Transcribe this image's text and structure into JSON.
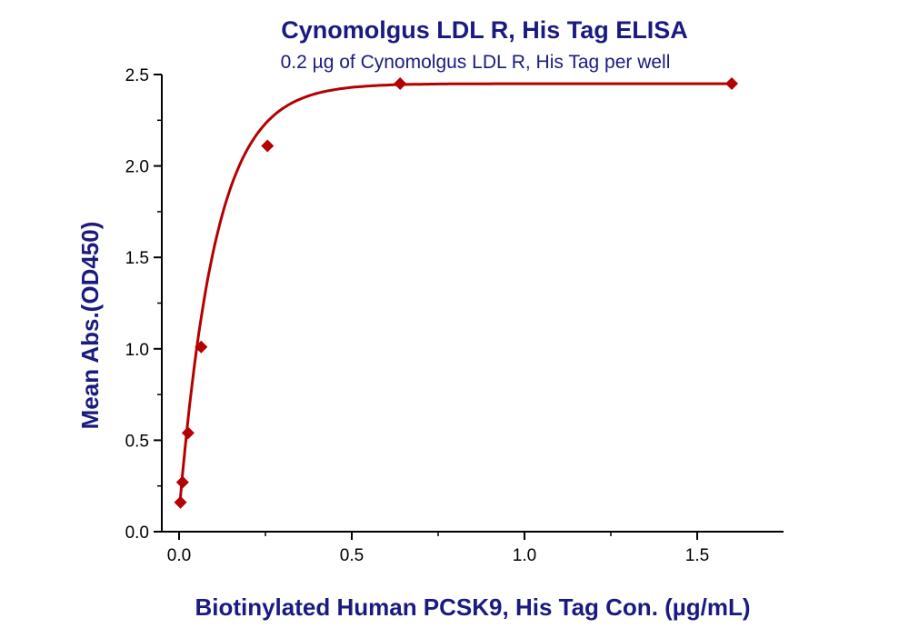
{
  "chart_data": {
    "type": "scatter",
    "title": "Cynomolgus LDL R, His Tag ELISA",
    "subtitle": "0.2 µg of Cynomolgus LDL R, His Tag per well",
    "xlabel": "Biotinylated Human PCSK9, His Tag Con. (µg/mL)",
    "ylabel": "Mean Abs.(OD450)",
    "xlim": [
      -0.05,
      1.75
    ],
    "ylim": [
      0,
      2.5
    ],
    "x_ticks": [
      0.0,
      0.5,
      1.0,
      1.5
    ],
    "x_tick_labels": [
      "0.0",
      "0.5",
      "1.0",
      "1.5"
    ],
    "y_ticks": [
      0.0,
      0.5,
      1.0,
      1.5,
      2.0,
      2.5
    ],
    "y_tick_labels": [
      "0.0",
      "0.5",
      "1.0",
      "1.5",
      "2.0",
      "2.5"
    ],
    "grid": false,
    "series": [
      {
        "name": "Mean Abs.(OD450)",
        "marker": "diamond",
        "x": [
          0.004,
          0.01,
          0.026,
          0.064,
          0.256,
          0.64,
          1.6
        ],
        "y": [
          0.16,
          0.27,
          0.54,
          1.01,
          2.11,
          2.45,
          2.45
        ]
      }
    ],
    "fit_curve": {
      "model": "one-site saturation",
      "x_range": [
        0.004,
        1.6
      ],
      "params": {
        "bottom": 0.1,
        "top": 2.45,
        "k": 9.5
      }
    },
    "colors": {
      "text": "#1a1a80",
      "series": "#b40000",
      "axis": "#000000"
    }
  }
}
